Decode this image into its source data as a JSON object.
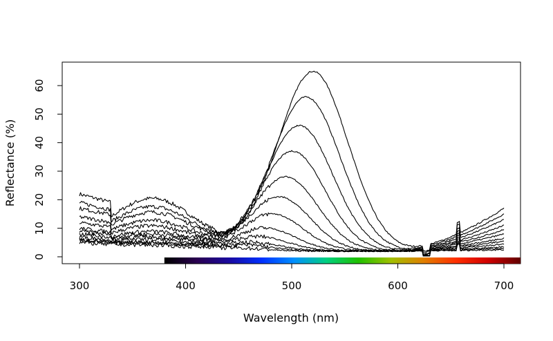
{
  "chart_data": {
    "type": "line",
    "title": "",
    "xlabel": "Wavelength (nm)",
    "ylabel": "Reflectance (%)",
    "xlim": [
      300,
      700
    ],
    "ylim": [
      0,
      65
    ],
    "x_ticks": [
      300,
      400,
      500,
      600,
      700
    ],
    "y_ticks": [
      0,
      10,
      20,
      30,
      40,
      50,
      60
    ],
    "grid": false,
    "legend": "none",
    "spectrum_bar": {
      "x_start": 380,
      "x_end": 717,
      "colors": [
        "#000000",
        "#2a0050",
        "#1a0aa0",
        "#0030ff",
        "#0090ff",
        "#00d080",
        "#20c000",
        "#a0c000",
        "#e08000",
        "#ff3000",
        "#d00000",
        "#600000"
      ]
    },
    "series_count": 12,
    "peak_heights": [
      65,
      56,
      46,
      37,
      28,
      21,
      15,
      10,
      7,
      5,
      4,
      3
    ],
    "uv_start_values": [
      22,
      19,
      17,
      14,
      12,
      10,
      9,
      8,
      7,
      6,
      6,
      5
    ],
    "red_end_values": [
      17.5,
      15.5,
      13.5,
      11.5,
      10,
      8.5,
      7,
      6,
      5,
      4,
      3.5,
      3
    ]
  }
}
